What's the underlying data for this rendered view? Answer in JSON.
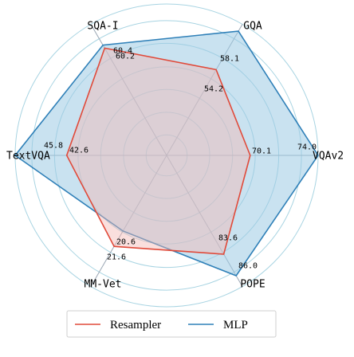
{
  "chart_data": {
    "type": "radar",
    "title": "",
    "axes": [
      "VQAv2",
      "GQA",
      "SQA-I",
      "TextVQA",
      "MM-Vet",
      "POPE"
    ],
    "series": [
      {
        "name": "Resampler",
        "values": [
          70.1,
          54.2,
          60.2,
          42.6,
          21.6,
          83.6
        ],
        "color": "#e04a3a",
        "fill": "#f4b8b3"
      },
      {
        "name": "MLP",
        "values": [
          74.0,
          58.1,
          60.4,
          45.8,
          20.6,
          86.0
        ],
        "color": "#2f80b8",
        "fill": "#9ccae4"
      }
    ],
    "data_labels": {
      "VQAv2": [
        "74.0",
        "70.1"
      ],
      "GQA": [
        "58.1",
        "54.2"
      ],
      "SQA-I": [
        "60.4",
        "60.2"
      ],
      "TextVQA": [
        "45.8",
        "42.6"
      ],
      "MM-Vet": [
        "20.6",
        "21.6"
      ],
      "POPE": [
        "83.6",
        "86.0"
      ]
    },
    "grid": true,
    "grid_color": "#a8d4e2",
    "spoke_color": "#9aa6b4",
    "legend": {
      "position": "bottom",
      "entries": [
        "Resampler",
        "MLP"
      ]
    }
  }
}
